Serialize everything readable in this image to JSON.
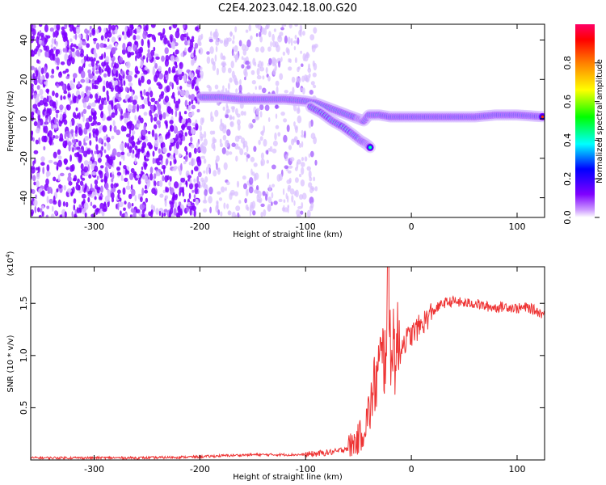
{
  "title": "C2E4.2023.042.18.00.G20",
  "chart_data": [
    {
      "type": "heatmap",
      "xlabel": "Height of straight line (km)",
      "ylabel": "Frequency (Hz)",
      "xlim": [
        -360,
        126
      ],
      "ylim": [
        -50,
        48
      ],
      "xticks": [
        -300,
        -200,
        -100,
        0,
        100
      ],
      "yticks": [
        -40,
        -20,
        0,
        20,
        40
      ],
      "colorbar": {
        "label": "Normalized spectral amplitude",
        "range": [
          0.0,
          1.0
        ],
        "ticks": [
          "0.0",
          "0.2",
          "0.4",
          "0.6",
          "0.8"
        ],
        "colors": [
          "#ffffff",
          "#7f00ff",
          "#0000ff",
          "#00ffff",
          "#00ff00",
          "#ffff00",
          "#ff7f00",
          "#ff0000",
          "#ff0066"
        ]
      },
      "ridge": {
        "x": [
          -198,
          -180,
          -160,
          -140,
          -120,
          -100,
          -90,
          -80,
          -70,
          -60,
          -50,
          -45,
          -40,
          -30,
          -20,
          0,
          20,
          40,
          60,
          80,
          100,
          126
        ],
        "y": [
          11,
          11,
          10,
          10,
          10,
          9,
          8,
          6,
          4,
          2,
          0,
          -1,
          2,
          2,
          1,
          1,
          1,
          1,
          1,
          2,
          2,
          1
        ]
      },
      "branch": {
        "x": [
          -95,
          -85,
          -75,
          -65,
          -55,
          -48,
          -42,
          -38
        ],
        "y": [
          6,
          3,
          -1,
          -4,
          -8,
          -11,
          -13,
          -15
        ]
      },
      "noise_region": [
        -360,
        -90
      ]
    },
    {
      "type": "line",
      "xlabel": "Height of straight line (km)",
      "ylabel": "SNR (10 * v/v)",
      "y_multiplier": "(x10",
      "y_multiplier_exp": "4",
      "y_multiplier_close": ")",
      "xlim": [
        -360,
        126
      ],
      "ylim": [
        0.0,
        1.85
      ],
      "xticks": [
        -300,
        -200,
        -100,
        0,
        100
      ],
      "yticks": [
        0.5,
        1.0,
        1.5
      ],
      "color": "#ee3333",
      "series": [
        {
          "x": [
            -360,
            -300,
            -250,
            -200,
            -180,
            -150,
            -120,
            -100,
            -90,
            -70,
            -60,
            -50,
            -45,
            -40,
            -35,
            -30,
            -25,
            -22,
            -20,
            -15,
            -10,
            -5,
            0,
            10,
            20,
            30,
            40,
            50,
            60,
            70,
            80,
            90,
            100,
            110,
            120,
            126
          ],
          "y": [
            0.02,
            0.02,
            0.02,
            0.03,
            0.04,
            0.05,
            0.05,
            0.05,
            0.06,
            0.08,
            0.12,
            0.2,
            0.3,
            0.45,
            0.7,
            0.9,
            1.0,
            1.75,
            1.2,
            1.05,
            1.1,
            1.15,
            1.2,
            1.3,
            1.42,
            1.5,
            1.52,
            1.5,
            1.5,
            1.47,
            1.46,
            1.47,
            1.45,
            1.46,
            1.42,
            1.39
          ]
        }
      ]
    }
  ]
}
